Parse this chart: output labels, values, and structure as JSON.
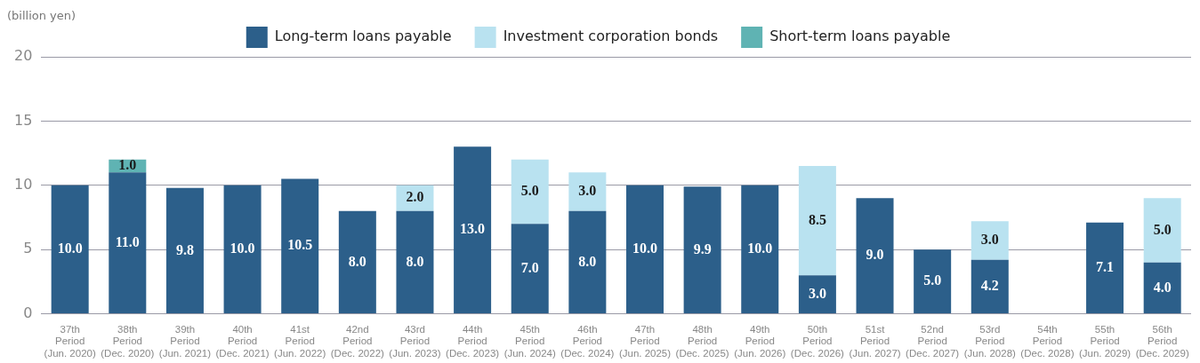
{
  "chart_data": {
    "type": "bar",
    "stacked": true,
    "ylabel": "(billion yen)",
    "legend": "top",
    "grid": "y",
    "categories": [
      "37th\nPeriod\n(Jun. 2020)",
      "38th\nPeriod\n(Dec. 2020)",
      "39th\nPeriod\n(Jun. 2021)",
      "40th\nPeriod\n(Dec. 2021)",
      "41st\nPeriod\n(Jun. 2022)",
      "42nd\nPeriod\n(Dec. 2022)",
      "43rd\nPeriod\n(Jun. 2023)",
      "44th\nPeriod\n(Dec. 2023)",
      "45th\nPeriod\n(Jun. 2024)",
      "46th\nPeriod\n(Dec. 2024)",
      "47th\nPeriod\n(Jun. 2025)",
      "48th\nPeriod\n(Dec. 2025)",
      "49th\nPeriod\n(Jun. 2026)",
      "50th\nPeriod\n(Dec. 2026)",
      "51st\nPeriod\n(Jun. 2027)",
      "52nd\nPeriod\n(Dec. 2027)",
      "53rd\nPeriod\n(Jun. 2028)",
      "54th\nPeriod\n(Dec. 2028)",
      "55th\nPeriod\n(Jun. 2029)",
      "56th\nPeriod\n(Dec. 2029)"
    ],
    "series": [
      {
        "name": "Long-term loans payable",
        "color": "#2c5f8a",
        "values": [
          10,
          11,
          9.8,
          10,
          10.5,
          8,
          8,
          13,
          7,
          8,
          10,
          9.9,
          10,
          3,
          9,
          5,
          4.2,
          null,
          7.1,
          4
        ],
        "value_labels": [
          "10.0",
          "11.0",
          "9.8",
          "10.0",
          "10.5",
          "8.0",
          "8.0",
          "13.0",
          "7.0",
          "8.0",
          "10.0",
          "9.9",
          "10.0",
          "3.0",
          "9.0",
          "5.0",
          "4.2",
          null,
          "7.1",
          "4.0"
        ]
      },
      {
        "name": "Investment corporation bonds",
        "color": "#b9e2f0",
        "values": [
          null,
          null,
          null,
          null,
          null,
          null,
          2,
          null,
          5,
          3,
          null,
          null,
          null,
          8.5,
          null,
          null,
          3,
          null,
          null,
          5
        ],
        "value_labels": [
          null,
          null,
          null,
          null,
          null,
          null,
          "2.0",
          null,
          "5.0",
          "3.0",
          null,
          null,
          null,
          "8.5",
          null,
          null,
          "3.0",
          null,
          null,
          "5.0"
        ]
      },
      {
        "name": "Short-term loans payable",
        "color": "#5fb3b3",
        "values": [
          null,
          1,
          null,
          null,
          null,
          null,
          null,
          null,
          null,
          null,
          null,
          null,
          null,
          null,
          null,
          null,
          null,
          null,
          null,
          null
        ],
        "value_labels": [
          null,
          "1.0",
          null,
          null,
          null,
          null,
          null,
          null,
          null,
          null,
          null,
          null,
          null,
          null,
          null,
          null,
          null,
          null,
          null,
          null
        ]
      }
    ],
    "ylim": [
      0,
      20
    ],
    "yticks": [
      0,
      5,
      10,
      15,
      20
    ]
  }
}
